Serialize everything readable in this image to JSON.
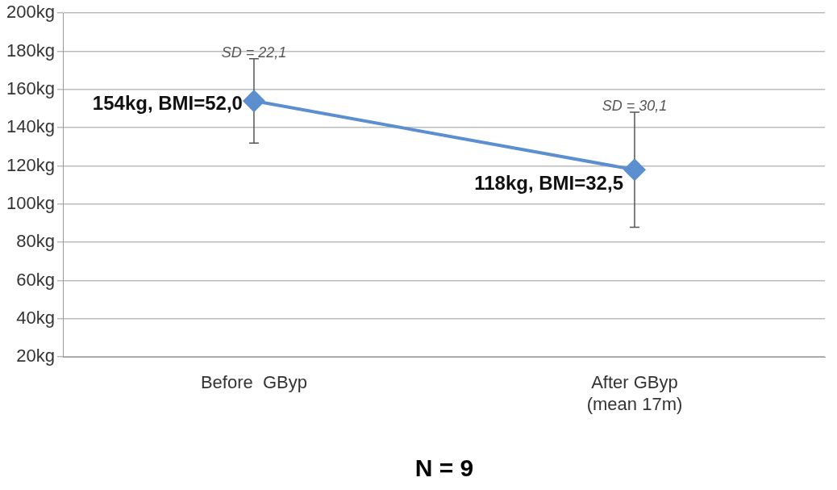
{
  "chart_data": {
    "type": "line",
    "categories": [
      "Before  GByp",
      "After GByp\n(mean 17m)"
    ],
    "series": [
      {
        "color": "#5b8fd0",
        "values": [
          154,
          118
        ],
        "errors": [
          22.1,
          30.1
        ],
        "value_labels": [
          "154kg, BMI=52,0",
          "118kg, BMI=32,5"
        ]
      }
    ],
    "ylim": [
      20,
      200
    ],
    "yticks": [
      {
        "value": 20,
        "label": "20kg"
      },
      {
        "value": 40,
        "label": "40kg"
      },
      {
        "value": 60,
        "label": "60kg"
      },
      {
        "value": 80,
        "label": "80kg"
      },
      {
        "value": 100,
        "label": "100kg"
      },
      {
        "value": 120,
        "label": "120kg"
      },
      {
        "value": 140,
        "label": "140kg"
      },
      {
        "value": 160,
        "label": "160kg"
      },
      {
        "value": 180,
        "label": "180kg"
      },
      {
        "value": 200,
        "label": "200kg"
      }
    ],
    "grid": "y",
    "legend": false,
    "marker": "diamond",
    "line_style": "solid",
    "annotations": [
      "SD = 22,1",
      "SD = 30,1",
      "N = 9"
    ]
  }
}
